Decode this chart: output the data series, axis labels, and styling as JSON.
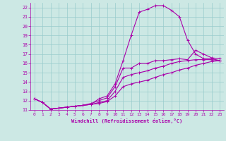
{
  "xlabel": "Windchill (Refroidissement éolien,°C)",
  "bg_color": "#cce8e4",
  "grid_color": "#99cccc",
  "line_color": "#aa00aa",
  "xlim": [
    -0.5,
    23.5
  ],
  "ylim": [
    11,
    22.5
  ],
  "xticks": [
    0,
    1,
    2,
    3,
    4,
    5,
    6,
    7,
    8,
    9,
    10,
    11,
    12,
    13,
    14,
    15,
    16,
    17,
    18,
    19,
    20,
    21,
    22,
    23
  ],
  "yticks": [
    11,
    12,
    13,
    14,
    15,
    16,
    17,
    18,
    19,
    20,
    21,
    22
  ],
  "line1_x": [
    0,
    1,
    2,
    3,
    4,
    5,
    6,
    7,
    8,
    9,
    10,
    11,
    12,
    13,
    14,
    15,
    16,
    17,
    18,
    19,
    20,
    21,
    22,
    23
  ],
  "line1_y": [
    12.2,
    11.8,
    11.1,
    11.2,
    11.3,
    11.4,
    11.5,
    11.6,
    12.2,
    12.5,
    13.8,
    16.3,
    19.0,
    21.5,
    21.8,
    22.2,
    22.2,
    21.7,
    21.0,
    18.5,
    17.0,
    16.5,
    16.5,
    16.3
  ],
  "line2_x": [
    0,
    1,
    2,
    3,
    4,
    5,
    6,
    7,
    8,
    9,
    10,
    11,
    12,
    13,
    14,
    15,
    16,
    17,
    18,
    19,
    20,
    21,
    22,
    23
  ],
  "line2_y": [
    12.2,
    11.8,
    11.1,
    11.2,
    11.3,
    11.4,
    11.5,
    11.7,
    12.0,
    12.3,
    13.5,
    15.5,
    15.5,
    16.0,
    16.0,
    16.3,
    16.3,
    16.4,
    16.5,
    16.4,
    17.4,
    17.0,
    16.6,
    16.5
  ],
  "line3_x": [
    0,
    1,
    2,
    3,
    4,
    5,
    6,
    7,
    8,
    9,
    10,
    11,
    12,
    13,
    14,
    15,
    16,
    17,
    18,
    19,
    20,
    21,
    22,
    23
  ],
  "line3_y": [
    12.2,
    11.8,
    11.1,
    11.2,
    11.3,
    11.4,
    11.5,
    11.6,
    11.8,
    12.0,
    13.0,
    14.5,
    14.8,
    15.0,
    15.2,
    15.5,
    15.7,
    16.0,
    16.2,
    16.3,
    16.4,
    16.4,
    16.4,
    16.3
  ],
  "line4_x": [
    0,
    1,
    2,
    3,
    4,
    5,
    6,
    7,
    8,
    9,
    10,
    11,
    12,
    13,
    14,
    15,
    16,
    17,
    18,
    19,
    20,
    21,
    22,
    23
  ],
  "line4_y": [
    12.2,
    11.8,
    11.1,
    11.2,
    11.3,
    11.4,
    11.5,
    11.6,
    11.7,
    11.9,
    12.5,
    13.5,
    13.8,
    14.0,
    14.2,
    14.5,
    14.8,
    15.0,
    15.3,
    15.5,
    15.8,
    16.0,
    16.2,
    16.3
  ]
}
